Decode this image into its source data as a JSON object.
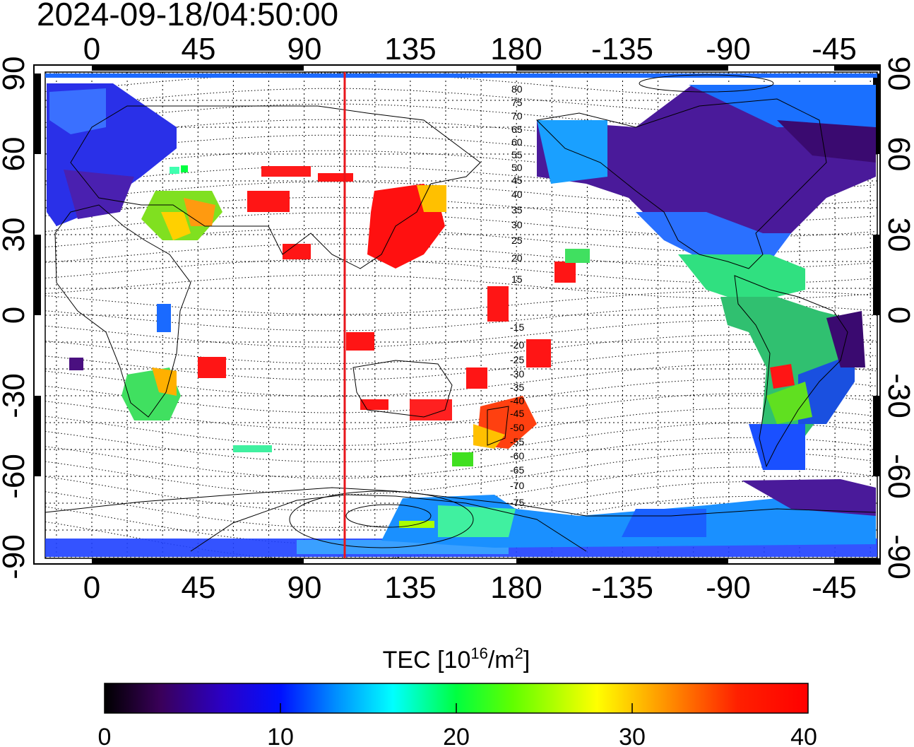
{
  "timestamp": "2024-09-18/04:50:00",
  "map": {
    "lon_ticks": [
      "0",
      "45",
      "90",
      "135",
      "180",
      "-135",
      "-90",
      "-45"
    ],
    "lat_ticks": [
      "90",
      "60",
      "30",
      "0",
      "-30",
      "-60",
      "-90"
    ],
    "geomagnetic_labels_north": [
      "80",
      "75",
      "70",
      "65",
      "60",
      "55",
      "50",
      "45",
      "40",
      "35",
      "30",
      "25",
      "20",
      "15"
    ],
    "geomagnetic_labels_south": [
      "-15",
      "-20",
      "-25",
      "-30",
      "-35",
      "-40",
      "-45",
      "-50",
      "-55",
      "-60",
      "-65",
      "-70",
      "-75"
    ],
    "terminator_longitude": 107,
    "terminator_color": "#e8151b"
  },
  "colorbar": {
    "title": "TEC  [10",
    "title_sup": "16",
    "title_mid": "/m",
    "title_sup2": "2",
    "title_end": "]",
    "ticks": [
      "0",
      "10",
      "20",
      "30",
      "40"
    ],
    "colors": [
      "#000000",
      "#3a005a",
      "#2a00c8",
      "#0010ff",
      "#0090ff",
      "#00ffff",
      "#00ff40",
      "#60ff00",
      "#ffff00",
      "#ff9000",
      "#ff2000",
      "#ff0000"
    ]
  }
}
